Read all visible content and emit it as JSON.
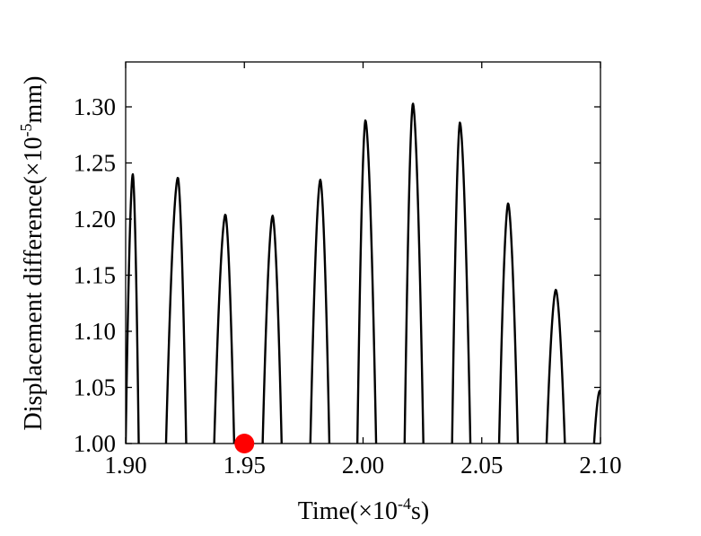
{
  "chart_data": {
    "type": "line",
    "title": "",
    "xlabel": "Time(×10⁻⁴s)",
    "xlabel_parts": {
      "prefix": "Time(×10",
      "sup": "-4",
      "suffix": "s)"
    },
    "ylabel": "Displacement difference(×10⁻⁵mm)",
    "ylabel_parts": {
      "prefix": "Displacement difference(×10",
      "sup": "-5",
      "suffix": "mm)"
    },
    "xlim": [
      1.9,
      2.1
    ],
    "ylim": [
      1.0,
      1.34
    ],
    "x_ticks": [
      "1.90",
      "1.95",
      "2.00",
      "2.05",
      "2.10"
    ],
    "y_ticks": [
      "1.00",
      "1.05",
      "1.10",
      "1.15",
      "1.20",
      "1.25",
      "1.30"
    ],
    "grid": false,
    "series": [
      {
        "color": "#000000",
        "peaks": [
          {
            "start": 1.9,
            "top": 1.903,
            "end": 1.9055,
            "peak": 1.24
          },
          {
            "start": 1.917,
            "top": 1.922,
            "end": 1.9255,
            "peak": 1.237
          },
          {
            "start": 1.9373,
            "top": 1.942,
            "end": 1.9457,
            "peak": 1.204
          },
          {
            "start": 1.9577,
            "top": 1.9619,
            "end": 1.9657,
            "peak": 1.203
          },
          {
            "start": 1.9778,
            "top": 1.982,
            "end": 1.9858,
            "peak": 1.235
          },
          {
            "start": 1.9976,
            "top": 2.001,
            "end": 2.0055,
            "peak": 1.288
          },
          {
            "start": 2.0175,
            "top": 2.021,
            "end": 2.0254,
            "peak": 1.303
          },
          {
            "start": 2.0375,
            "top": 2.0408,
            "end": 2.0452,
            "peak": 1.286
          },
          {
            "start": 2.0573,
            "top": 2.0611,
            "end": 2.0652,
            "peak": 1.214
          },
          {
            "start": 2.0773,
            "top": 2.0812,
            "end": 2.085,
            "peak": 1.137
          },
          {
            "start": 2.0973,
            "top": 2.0997,
            "end": 2.1022,
            "peak": 1.047
          }
        ]
      }
    ],
    "markers": [
      {
        "x": 1.95,
        "y": 1.0,
        "color": "#ff0000"
      }
    ]
  }
}
